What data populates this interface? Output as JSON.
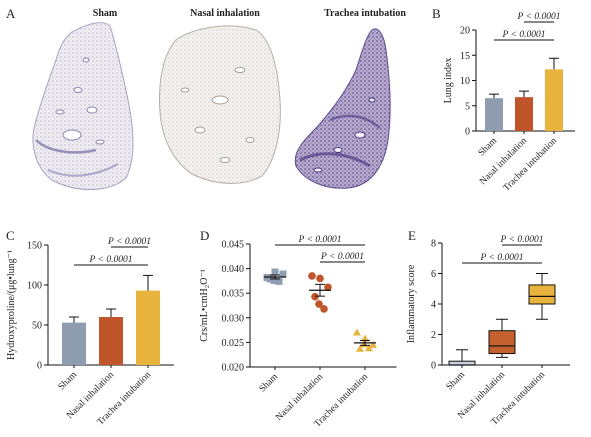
{
  "panel_a": {
    "letter": "A",
    "titles": [
      "Sham",
      "Nasal inhalation",
      "Trachea intubation"
    ]
  },
  "colors": {
    "sham": "#8e9db0",
    "nasal": "#c0552b",
    "trachea": "#e8b33c",
    "line": "#111111"
  },
  "chart_data": [
    {
      "id": "B",
      "type": "bar",
      "categories": [
        "Sham",
        "Nasal inhalation",
        "Trachea intubation"
      ],
      "values": [
        6.5,
        6.7,
        12.2
      ],
      "errors": [
        0.8,
        1.2,
        2.2
      ],
      "ylabel": "Lung index",
      "ylim": [
        0,
        20
      ],
      "yticks": [
        "0",
        "5",
        "10",
        "15",
        "20"
      ],
      "annotations": [
        {
          "text": "P < 0.0001",
          "from": 1,
          "to": 2
        },
        {
          "text": "P < 0.0001",
          "from": 0,
          "to": 2
        }
      ]
    },
    {
      "id": "C",
      "type": "bar",
      "categories": [
        "Sham",
        "Nasal inhalation",
        "Trachea intubation"
      ],
      "values": [
        53,
        60,
        93
      ],
      "errors": [
        7,
        10,
        19
      ],
      "ylabel": "Hydroxyproline/(μg•lung⁻¹",
      "ylim": [
        0,
        150
      ],
      "yticks": [
        "0",
        "50",
        "100",
        "150"
      ],
      "annotations": [
        {
          "text": "P < 0.0001",
          "from": 1,
          "to": 2
        },
        {
          "text": "P < 0.0001",
          "from": 0,
          "to": 2
        }
      ]
    },
    {
      "id": "D",
      "type": "scatter",
      "categories": [
        "Sham",
        "Nasal inhalation",
        "Trachea intubation"
      ],
      "series": [
        {
          "points": [
            0.0382,
            0.0393,
            0.0389,
            0.0379,
            0.0374,
            0.0376
          ],
          "mean": 0.0383,
          "sem": 0.0004
        },
        {
          "points": [
            0.0385,
            0.038,
            0.0362,
            0.0343,
            0.0318,
            0.0328
          ],
          "mean": 0.0356,
          "sem": 0.0012
        },
        {
          "points": [
            0.027,
            0.0258,
            0.0245,
            0.0237,
            0.0238,
            0.0246
          ],
          "mean": 0.0249,
          "sem": 0.0005
        }
      ],
      "ylabel": "Crs/mL•cmH₂O⁻¹",
      "ylim": [
        0.02,
        0.045
      ],
      "yticks": [
        "0.020",
        "0.025",
        "0.030",
        "0.035",
        "0.040",
        "0.045"
      ],
      "annotations": [
        {
          "text": "P < 0.0001",
          "from": 0,
          "to": 2
        },
        {
          "text": "P < 0.0001",
          "from": 1,
          "to": 2
        }
      ]
    },
    {
      "id": "E",
      "type": "box",
      "categories": [
        "Sham",
        "Nasal inhalation",
        "Trachea intubation"
      ],
      "boxes": [
        {
          "min": 0,
          "q1": 0,
          "median": 0,
          "q3": 0.25,
          "max": 1
        },
        {
          "min": 0.5,
          "q1": 0.75,
          "median": 1.25,
          "q3": 2.25,
          "max": 3
        },
        {
          "min": 3,
          "q1": 4,
          "median": 4.5,
          "q3": 5.25,
          "max": 6
        }
      ],
      "ylabel": "Inflammatory score",
      "ylim": [
        0,
        8
      ],
      "yticks": [
        "0",
        "2",
        "4",
        "6",
        "8"
      ],
      "annotations": [
        {
          "text": "P < 0.0001",
          "from": 1,
          "to": 2
        },
        {
          "text": "P < 0.0001",
          "from": 0,
          "to": 2
        }
      ]
    }
  ]
}
